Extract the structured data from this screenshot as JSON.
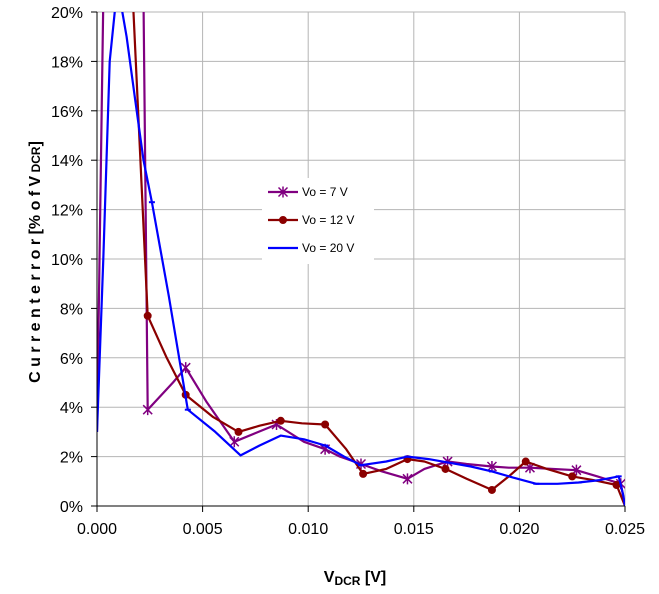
{
  "chart_data": {
    "type": "line",
    "xlabel": {
      "main": "V",
      "sub": "DCR",
      "rest": " [V]"
    },
    "ylabel": {
      "main": "C u r r e n t  e r r o r  [% o f  V",
      "sub": " DCR",
      "rest": "]"
    },
    "xlim": [
      0,
      0.025
    ],
    "ylim": [
      0,
      20
    ],
    "x_ticks": [
      "0.000",
      "0.005",
      "0.010",
      "0.015",
      "0.020",
      "0.025"
    ],
    "y_ticks": [
      "0%",
      "2%",
      "4%",
      "6%",
      "8%",
      "10%",
      "12%",
      "14%",
      "16%",
      "18%",
      "20%"
    ],
    "grid": true,
    "legend_position": "center",
    "series": [
      {
        "name": "Vo = 7 V",
        "color": "#800080",
        "marker": "star",
        "x": [
          0.0,
          0.0003,
          0.0012,
          0.0022,
          0.0024,
          0.0036,
          0.0042,
          0.0052,
          0.0065,
          0.0075,
          0.0085,
          0.0098,
          0.0108,
          0.0115,
          0.0125,
          0.0135,
          0.0147,
          0.0155,
          0.0166,
          0.0175,
          0.0187,
          0.0195,
          0.0205,
          0.0215,
          0.0227,
          0.0237,
          0.0248,
          0.025
        ],
        "y": [
          3.0,
          20.5,
          20.5,
          20.5,
          3.9,
          5.0,
          5.6,
          4.2,
          2.6,
          2.95,
          3.3,
          2.6,
          2.3,
          2.0,
          1.7,
          1.4,
          1.1,
          1.5,
          1.8,
          1.7,
          1.6,
          1.55,
          1.55,
          1.5,
          1.45,
          1.2,
          0.9,
          0.0
        ]
      },
      {
        "name": "Vo = 12 V",
        "color": "#8B0000",
        "marker": "circle",
        "x": [
          0.0,
          0.00015,
          0.0017,
          0.0024,
          0.0033,
          0.0042,
          0.0055,
          0.0067,
          0.0077,
          0.0087,
          0.0097,
          0.0108,
          0.0118,
          0.0126,
          0.0137,
          0.0147,
          0.0155,
          0.0165,
          0.0175,
          0.0187,
          0.0195,
          0.0203,
          0.0213,
          0.0225,
          0.0235,
          0.0246,
          0.025
        ],
        "y": [
          20.0,
          20.5,
          20.5,
          7.7,
          6.0,
          4.5,
          3.6,
          3.0,
          3.25,
          3.45,
          3.35,
          3.3,
          2.3,
          1.3,
          1.5,
          1.9,
          1.8,
          1.5,
          1.1,
          0.65,
          1.2,
          1.8,
          1.5,
          1.2,
          1.05,
          0.85,
          0.0
        ]
      },
      {
        "name": "Vo = 20 V",
        "color": "#0000FF",
        "marker": "dash",
        "x": [
          0.0,
          0.0003,
          0.0006,
          0.0009,
          0.0011,
          0.0014,
          0.0018,
          0.0022,
          0.0026,
          0.0034,
          0.0043,
          0.0056,
          0.0068,
          0.0077,
          0.0087,
          0.0098,
          0.0108,
          0.0117,
          0.0125,
          0.0137,
          0.0147,
          0.0157,
          0.0167,
          0.0177,
          0.0187,
          0.0197,
          0.0208,
          0.0218,
          0.0228,
          0.0238,
          0.0247,
          0.0249,
          0.025
        ],
        "y": [
          3.0,
          10.0,
          18.0,
          20.5,
          20.5,
          19.0,
          16.5,
          14.0,
          12.3,
          8.5,
          3.9,
          3.0,
          2.05,
          2.45,
          2.85,
          2.7,
          2.45,
          2.0,
          1.65,
          1.8,
          2.0,
          1.9,
          1.75,
          1.6,
          1.4,
          1.15,
          0.9,
          0.9,
          0.95,
          1.05,
          1.2,
          0.5,
          0.0
        ]
      }
    ]
  }
}
